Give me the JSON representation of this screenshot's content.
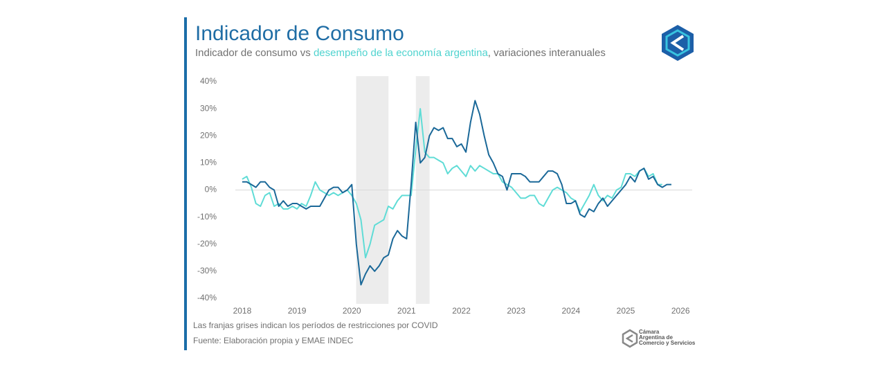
{
  "chart_data": {
    "type": "line",
    "title": "Indicador de Consumo",
    "subtitle": {
      "connector": " vs ",
      "suffix": ", variaciones interanuales"
    },
    "x": [
      2018,
      2018.083,
      2018.167,
      2018.25,
      2018.333,
      2018.417,
      2018.5,
      2018.583,
      2018.667,
      2018.75,
      2018.833,
      2018.917,
      2019,
      2019.083,
      2019.167,
      2019.25,
      2019.333,
      2019.417,
      2019.5,
      2019.583,
      2019.667,
      2019.75,
      2019.833,
      2019.917,
      2020,
      2020.083,
      2020.167,
      2020.25,
      2020.333,
      2020.417,
      2020.5,
      2020.583,
      2020.667,
      2020.75,
      2020.833,
      2020.917,
      2021,
      2021.083,
      2021.167,
      2021.25,
      2021.333,
      2021.417,
      2021.5,
      2021.583,
      2021.667,
      2021.75,
      2021.833,
      2021.917,
      2022,
      2022.083,
      2022.167,
      2022.25,
      2022.333,
      2022.417,
      2022.5,
      2022.583,
      2022.667,
      2022.75,
      2022.833,
      2022.917,
      2023,
      2023.083,
      2023.167,
      2023.25,
      2023.333,
      2023.417,
      2023.5,
      2023.583,
      2023.667,
      2023.75,
      2023.833,
      2023.917,
      2024,
      2024.083,
      2024.167,
      2024.25,
      2024.333,
      2024.417,
      2024.5,
      2024.583,
      2024.667,
      2024.75,
      2024.833,
      2024.917,
      2025,
      2025.083,
      2025.167,
      2025.25,
      2025.333,
      2025.417,
      2025.5,
      2025.583,
      2025.667,
      2025.75,
      2025.833
    ],
    "series": [
      {
        "name": "Indicador de consumo",
        "color": "#1a6898",
        "values": [
          3,
          3,
          2,
          1,
          3,
          3,
          1,
          0,
          -6,
          -4,
          -6,
          -5,
          -5,
          -6,
          -7,
          -6,
          -6,
          -6,
          -3,
          0,
          1,
          1,
          -1,
          0,
          2,
          -20,
          -35,
          -31,
          -28,
          -30,
          -28,
          -25,
          -24,
          -18,
          -15,
          -17,
          -18,
          2,
          25,
          10,
          12,
          20,
          23,
          22,
          23,
          19,
          19,
          16,
          17,
          14,
          25,
          33,
          28,
          20,
          13,
          10,
          6,
          5,
          0,
          6,
          6,
          6,
          5,
          3,
          3,
          3,
          5,
          7,
          7,
          6,
          2,
          -5,
          -5,
          -4,
          -9,
          -10,
          -7,
          -8,
          -5,
          -3,
          -6,
          -4,
          -2,
          0,
          2,
          5,
          3,
          7,
          8,
          4,
          5,
          2,
          1,
          2,
          2
        ]
      },
      {
        "name": "desempeño de la economía argentina",
        "color": "#5fdcd6",
        "values": [
          4,
          5,
          1,
          -5,
          -6,
          -2,
          -1,
          -6,
          -5,
          -7,
          -7,
          -6,
          -7,
          -5,
          -6,
          -2,
          3,
          0,
          -1,
          -2,
          -1,
          -2,
          -1,
          0,
          -2,
          -5,
          -11,
          -25,
          -20,
          -13,
          -12,
          -11,
          -6,
          -7,
          -4,
          -2,
          -2,
          -2,
          15,
          30,
          14,
          12,
          12,
          11,
          10,
          6,
          8,
          9,
          7,
          5,
          9,
          7,
          9,
          8,
          7,
          6,
          6,
          3,
          2,
          1,
          -1,
          -3,
          -3,
          -2,
          -2,
          -5,
          -6,
          -3,
          0,
          1,
          0,
          -1,
          -3,
          -4,
          -8,
          -5,
          -2,
          2,
          -2,
          -4,
          -2,
          -3,
          0,
          1,
          6,
          6,
          5,
          7,
          8,
          5,
          6,
          2,
          2,
          null,
          null
        ]
      }
    ],
    "shaded_ranges": [
      [
        2020.08,
        2020.67
      ],
      [
        2021.17,
        2021.42
      ]
    ],
    "xlim": [
      2017.9,
      2026.2
    ],
    "xticks": [
      2018,
      2019,
      2020,
      2021,
      2022,
      2023,
      2024,
      2025,
      2026
    ],
    "ylim": [
      -40,
      40
    ],
    "yticks": [
      {
        "value": -40,
        "label": "-40%"
      },
      {
        "value": -30,
        "label": "-30%"
      },
      {
        "value": -20,
        "label": "-20%"
      },
      {
        "value": -10,
        "label": "-10%"
      },
      {
        "value": 0,
        "label": "0%"
      },
      {
        "value": 10,
        "label": "10%"
      },
      {
        "value": 20,
        "label": "20%"
      },
      {
        "value": 30,
        "label": "30%"
      },
      {
        "value": 40,
        "label": "40%"
      }
    ],
    "zero_line": true,
    "notes": [
      "Las franjas grises indican los períodos de restricciones por COVID",
      "Fuente: Elaboración propia y EMAE INDEC"
    ],
    "logo_text": [
      "Cámara",
      "Argentina de",
      "Comercio y Servicios"
    ]
  }
}
